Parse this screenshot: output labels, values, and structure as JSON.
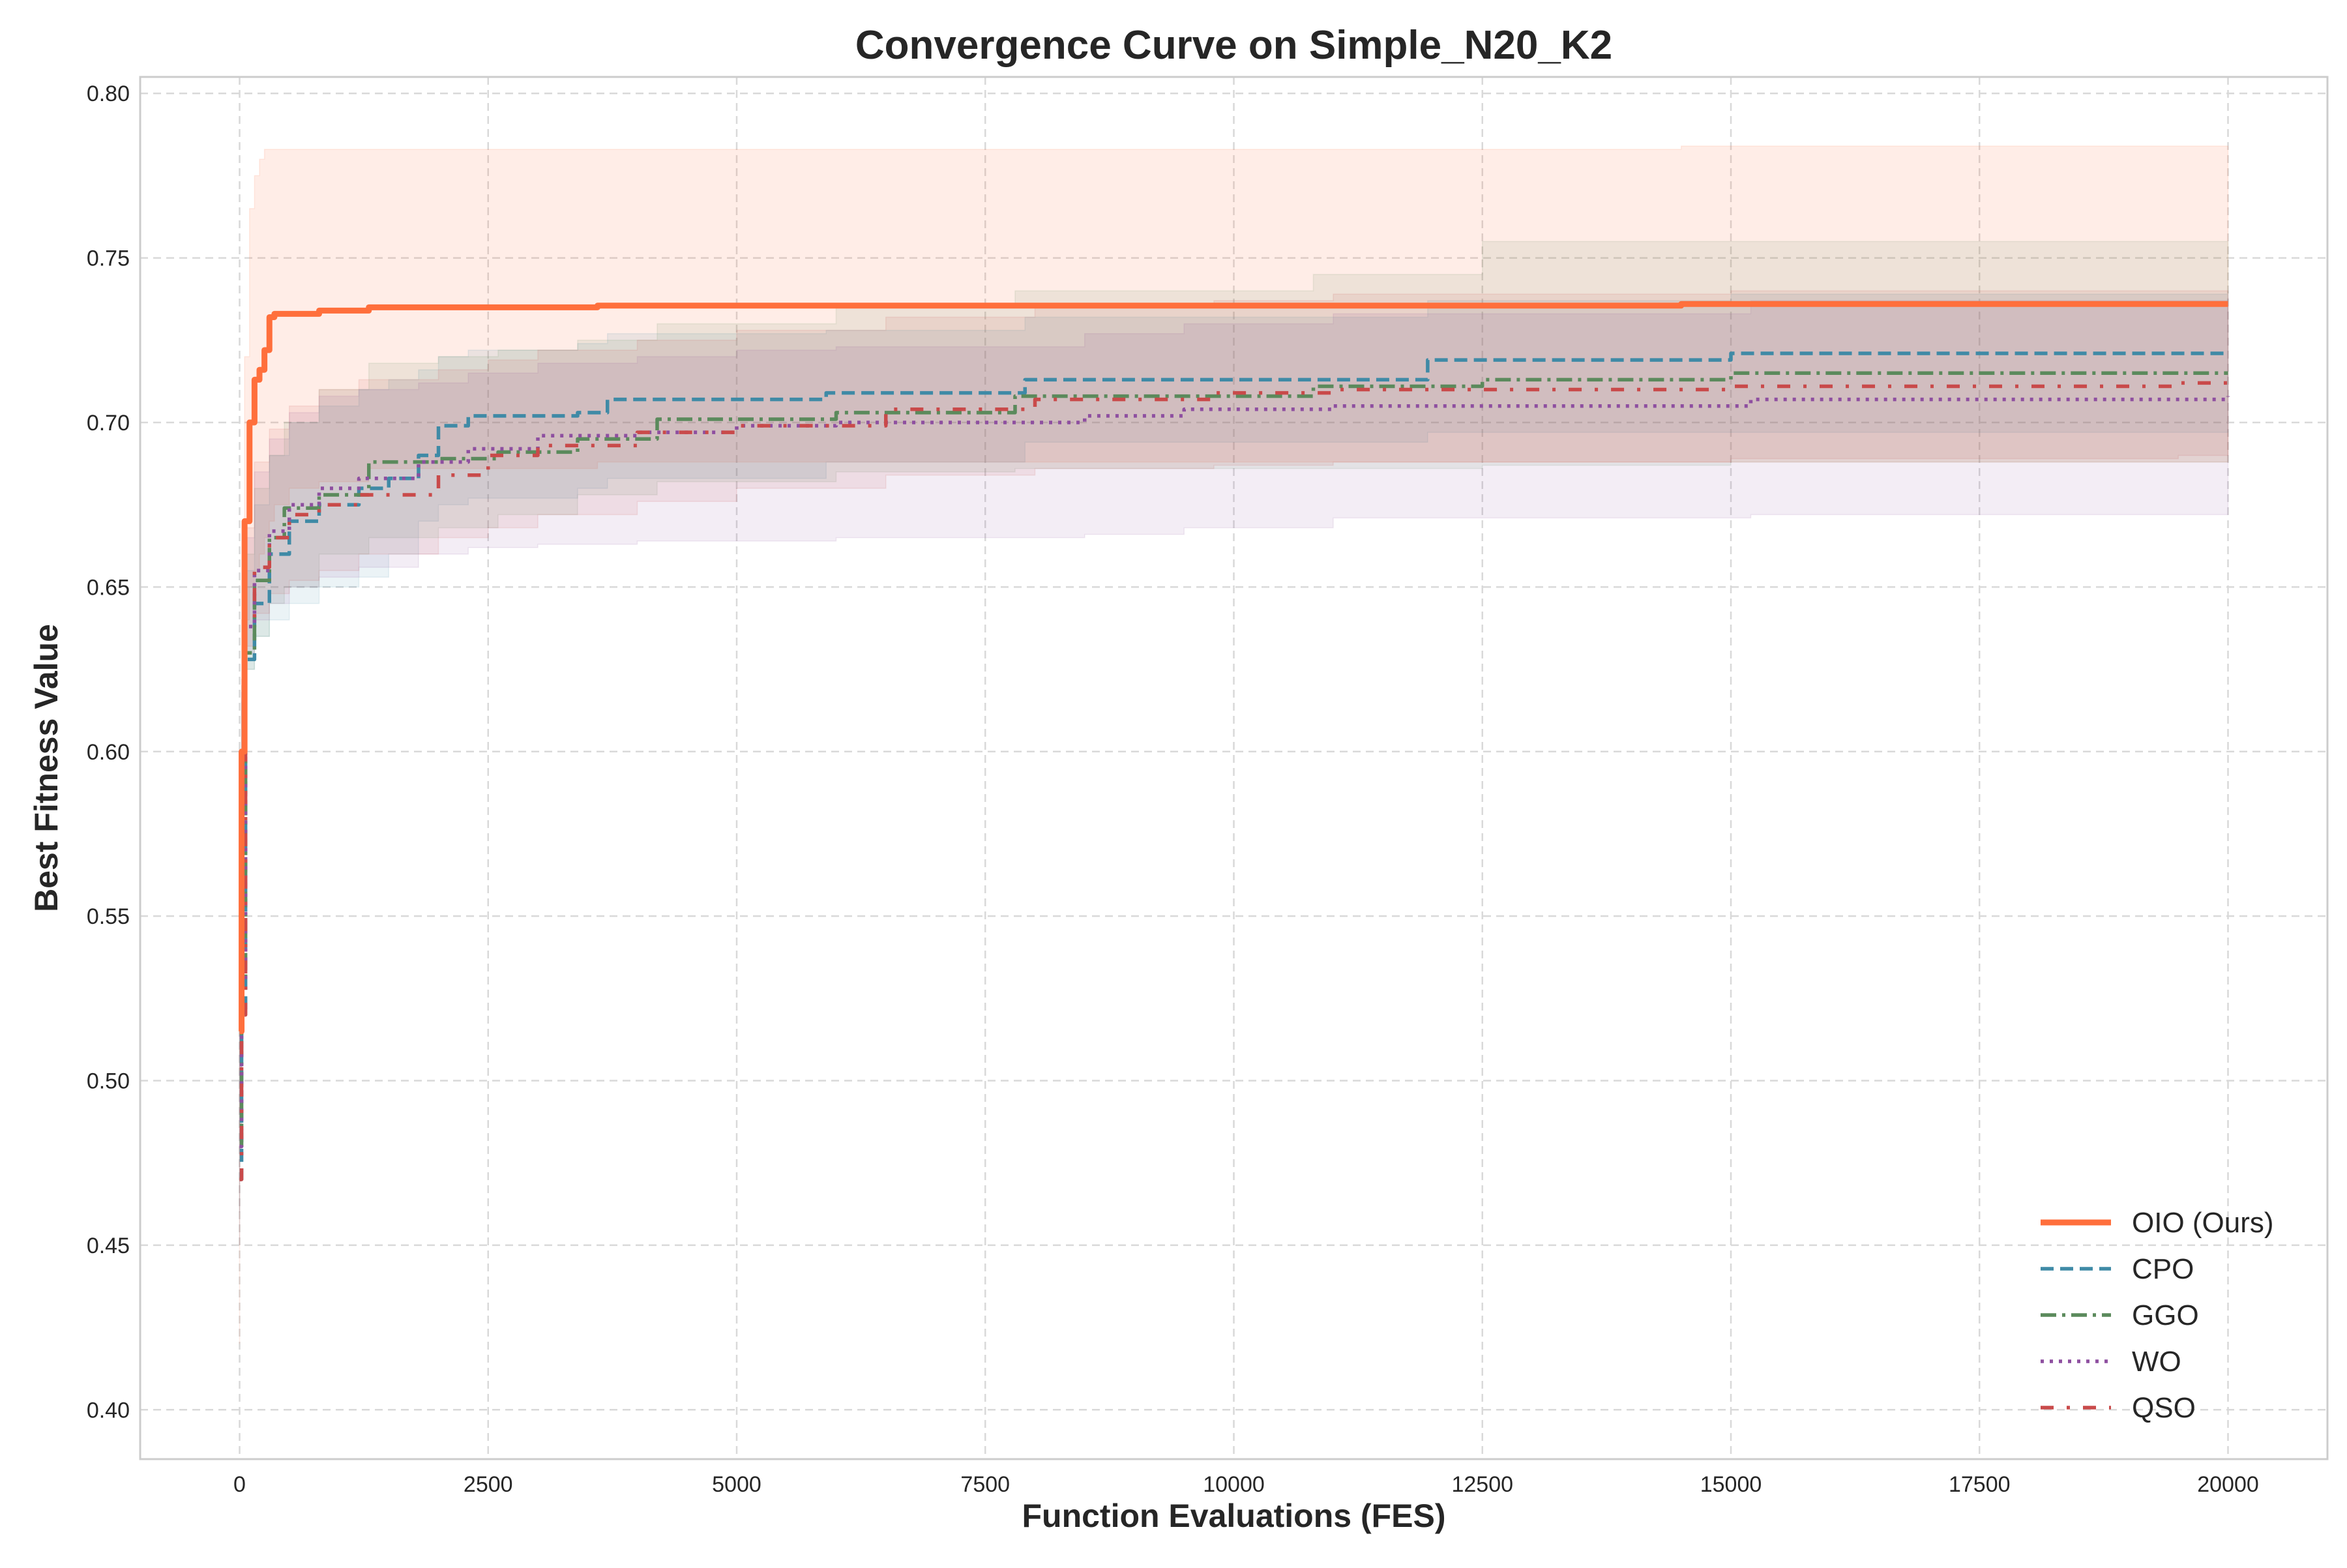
{
  "chart_data": {
    "type": "line",
    "title": "Convergence Curve on Simple_N20_K2",
    "xlabel": "Function Evaluations (FES)",
    "ylabel": "Best Fitness Value",
    "xlim": [
      -1000,
      21000
    ],
    "ylim": [
      0.385,
      0.805
    ],
    "xticks": [
      0,
      2500,
      5000,
      7500,
      10000,
      12500,
      15000,
      17500,
      20000
    ],
    "yticks": [
      0.4,
      0.45,
      0.5,
      0.55,
      0.6,
      0.65,
      0.7,
      0.75,
      0.8
    ],
    "xtick_labels": [
      "0",
      "2500",
      "5000",
      "7500",
      "10000",
      "12500",
      "15000",
      "17500",
      "20000"
    ],
    "ytick_labels": [
      "0.40",
      "0.45",
      "0.50",
      "0.55",
      "0.60",
      "0.65",
      "0.70",
      "0.75",
      "0.80"
    ],
    "grid": true,
    "legend_position": "bottom-right",
    "series": [
      {
        "name": "OIO (Ours)",
        "color": "#ff6f3c",
        "line_style": "solid",
        "x": [
          0,
          20,
          50,
          100,
          150,
          200,
          250,
          300,
          350,
          500,
          800,
          1300,
          3600,
          14500,
          20000
        ],
        "y": [
          0.515,
          0.6,
          0.67,
          0.7,
          0.713,
          0.716,
          0.722,
          0.732,
          0.733,
          0.733,
          0.734,
          0.735,
          0.7355,
          0.736,
          0.736
        ],
        "band_upper": [
          0.52,
          0.64,
          0.72,
          0.765,
          0.775,
          0.78,
          0.783,
          0.783,
          0.783,
          0.783,
          0.783,
          0.783,
          0.783,
          0.784,
          0.784
        ],
        "band_lower": [
          0.42,
          0.55,
          0.62,
          0.64,
          0.65,
          0.655,
          0.66,
          0.665,
          0.67,
          0.675,
          0.68,
          0.682,
          0.686,
          0.688,
          0.688
        ]
      },
      {
        "name": "CPO",
        "color": "#3f8aa6",
        "line_style": "dashed",
        "x": [
          0,
          20,
          60,
          150,
          300,
          500,
          800,
          1200,
          1500,
          1800,
          2000,
          2300,
          3400,
          3700,
          5900,
          7900,
          11950,
          15000,
          20000
        ],
        "y": [
          0.47,
          0.52,
          0.628,
          0.645,
          0.66,
          0.67,
          0.675,
          0.68,
          0.683,
          0.69,
          0.699,
          0.702,
          0.703,
          0.707,
          0.709,
          0.713,
          0.719,
          0.721,
          0.721
        ],
        "band_upper": [
          0.48,
          0.6,
          0.655,
          0.675,
          0.69,
          0.7,
          0.705,
          0.71,
          0.713,
          0.716,
          0.72,
          0.722,
          0.724,
          0.727,
          0.728,
          0.732,
          0.737,
          0.739,
          0.74
        ],
        "band_lower": [
          0.45,
          0.55,
          0.62,
          0.625,
          0.635,
          0.64,
          0.645,
          0.65,
          0.653,
          0.66,
          0.67,
          0.675,
          0.677,
          0.68,
          0.683,
          0.688,
          0.694,
          0.697,
          0.697
        ]
      },
      {
        "name": "GGO",
        "color": "#5b8a5c",
        "line_style": "dashdot",
        "x": [
          0,
          20,
          60,
          150,
          300,
          450,
          800,
          1300,
          2000,
          2600,
          3400,
          4200,
          6000,
          7800,
          10800,
          12500,
          15000,
          20000
        ],
        "y": [
          0.48,
          0.53,
          0.63,
          0.652,
          0.665,
          0.674,
          0.678,
          0.688,
          0.689,
          0.691,
          0.695,
          0.701,
          0.703,
          0.708,
          0.711,
          0.713,
          0.715,
          0.715
        ],
        "band_upper": [
          0.49,
          0.6,
          0.66,
          0.68,
          0.69,
          0.7,
          0.71,
          0.718,
          0.72,
          0.722,
          0.725,
          0.73,
          0.735,
          0.74,
          0.745,
          0.755,
          0.755,
          0.755
        ],
        "band_lower": [
          0.46,
          0.55,
          0.615,
          0.625,
          0.635,
          0.645,
          0.65,
          0.66,
          0.665,
          0.668,
          0.672,
          0.678,
          0.682,
          0.685,
          0.686,
          0.686,
          0.687,
          0.688
        ]
      },
      {
        "name": "WO",
        "color": "#8e4fa0",
        "line_style": "dotted",
        "x": [
          0,
          20,
          60,
          150,
          300,
          500,
          800,
          1200,
          1800,
          2300,
          3000,
          4000,
          5000,
          6000,
          8500,
          9500,
          11000,
          15200,
          20000
        ],
        "y": [
          0.48,
          0.53,
          0.638,
          0.655,
          0.667,
          0.675,
          0.68,
          0.683,
          0.688,
          0.692,
          0.696,
          0.697,
          0.699,
          0.7,
          0.702,
          0.704,
          0.705,
          0.707,
          0.708
        ],
        "band_upper": [
          0.49,
          0.6,
          0.665,
          0.685,
          0.695,
          0.703,
          0.708,
          0.71,
          0.712,
          0.715,
          0.718,
          0.72,
          0.722,
          0.723,
          0.727,
          0.73,
          0.733,
          0.737,
          0.738
        ],
        "band_lower": [
          0.46,
          0.55,
          0.618,
          0.63,
          0.64,
          0.645,
          0.65,
          0.653,
          0.656,
          0.66,
          0.662,
          0.663,
          0.664,
          0.664,
          0.665,
          0.666,
          0.668,
          0.671,
          0.672
        ]
      },
      {
        "name": "QSO",
        "color": "#c94a4a",
        "line_style": "dashdot-sparse",
        "x": [
          0,
          20,
          60,
          150,
          300,
          500,
          800,
          1200,
          2000,
          2500,
          3000,
          4000,
          5000,
          6500,
          8000,
          9800,
          11000,
          15000,
          19500,
          20000
        ],
        "y": [
          0.47,
          0.52,
          0.64,
          0.656,
          0.665,
          0.672,
          0.675,
          0.678,
          0.684,
          0.69,
          0.693,
          0.697,
          0.699,
          0.704,
          0.707,
          0.709,
          0.71,
          0.711,
          0.712,
          0.712
        ],
        "band_upper": [
          0.48,
          0.6,
          0.668,
          0.688,
          0.698,
          0.705,
          0.71,
          0.713,
          0.716,
          0.719,
          0.722,
          0.725,
          0.728,
          0.732,
          0.735,
          0.737,
          0.739,
          0.74,
          0.74,
          0.74
        ],
        "band_lower": [
          0.45,
          0.55,
          0.622,
          0.632,
          0.642,
          0.648,
          0.652,
          0.655,
          0.66,
          0.665,
          0.668,
          0.672,
          0.676,
          0.68,
          0.684,
          0.686,
          0.687,
          0.688,
          0.689,
          0.69
        ]
      }
    ]
  }
}
